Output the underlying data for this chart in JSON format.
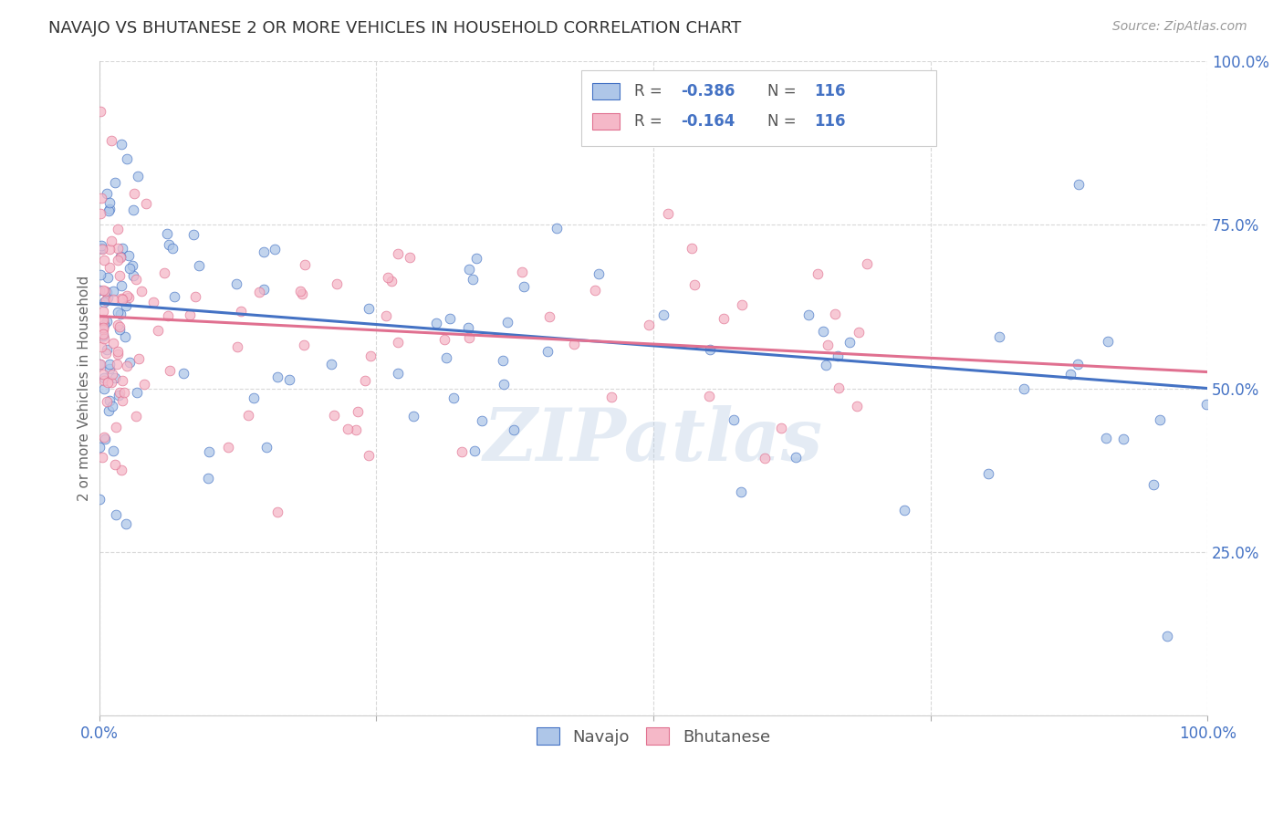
{
  "title": "NAVAJO VS BHUTANESE 2 OR MORE VEHICLES IN HOUSEHOLD CORRELATION CHART",
  "source": "Source: ZipAtlas.com",
  "ylabel": "2 or more Vehicles in Household",
  "navajo_R": -0.386,
  "bhutanese_R": -0.164,
  "N": 116,
  "navajo_color": "#aec6e8",
  "bhutanese_color": "#f5b8c8",
  "navajo_line_color": "#4472c4",
  "bhutanese_line_color": "#e07090",
  "navajo_label": "Navajo",
  "bhutanese_label": "Bhutanese",
  "watermark": "ZIPatlas",
  "xlim": [
    0,
    1
  ],
  "ylim": [
    0,
    1
  ],
  "xticks": [
    0,
    0.25,
    0.5,
    0.75,
    1.0
  ],
  "yticks": [
    0,
    0.25,
    0.5,
    0.75,
    1.0
  ],
  "xticklabels": [
    "0.0%",
    "",
    "",
    "",
    "100.0%"
  ],
  "yticklabels": [
    "",
    "25.0%",
    "50.0%",
    "75.0%",
    "100.0%"
  ],
  "background_color": "#ffffff",
  "grid_color": "#d8d8d8",
  "navajo_line_y0": 0.63,
  "navajo_line_y1": 0.5,
  "bhutanese_line_y0": 0.61,
  "bhutanese_line_y1": 0.525
}
